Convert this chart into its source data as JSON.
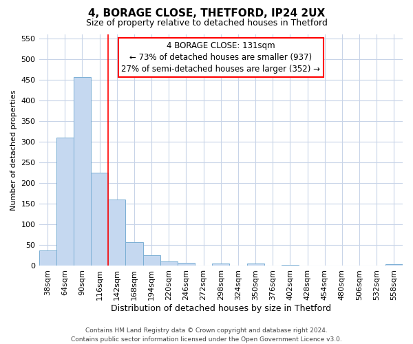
{
  "title": "4, BORAGE CLOSE, THETFORD, IP24 2UX",
  "subtitle": "Size of property relative to detached houses in Thetford",
  "xlabel": "Distribution of detached houses by size in Thetford",
  "ylabel": "Number of detached properties",
  "categories": [
    "38sqm",
    "64sqm",
    "90sqm",
    "116sqm",
    "142sqm",
    "168sqm",
    "194sqm",
    "220sqm",
    "246sqm",
    "272sqm",
    "298sqm",
    "324sqm",
    "350sqm",
    "376sqm",
    "402sqm",
    "428sqm",
    "454sqm",
    "480sqm",
    "506sqm",
    "532sqm",
    "558sqm"
  ],
  "values": [
    38,
    310,
    457,
    226,
    160,
    57,
    25,
    10,
    7,
    0,
    5,
    0,
    5,
    0,
    3,
    0,
    0,
    0,
    0,
    0,
    4
  ],
  "bar_color": "#c5d8f0",
  "bar_edge_color": "#7bafd4",
  "grid_color": "#c8d4e8",
  "background_color": "#ffffff",
  "red_line_x": 3,
  "annotation_title": "4 BORAGE CLOSE: 131sqm",
  "annotation_line1": "← 73% of detached houses are smaller (937)",
  "annotation_line2": "27% of semi-detached houses are larger (352) →",
  "footer1": "Contains HM Land Registry data © Crown copyright and database right 2024.",
  "footer2": "Contains public sector information licensed under the Open Government Licence v3.0.",
  "ylim": [
    0,
    560
  ],
  "yticks": [
    0,
    50,
    100,
    150,
    200,
    250,
    300,
    350,
    400,
    450,
    500,
    550
  ],
  "title_fontsize": 11,
  "subtitle_fontsize": 9,
  "xlabel_fontsize": 9,
  "ylabel_fontsize": 8,
  "tick_fontsize": 8,
  "ann_fontsize": 8.5,
  "footer_fontsize": 6.5
}
